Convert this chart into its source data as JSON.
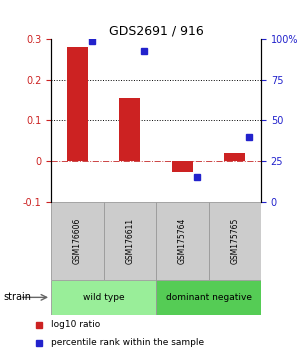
{
  "title": "GDS2691 / 916",
  "samples": [
    "GSM176606",
    "GSM176611",
    "GSM175764",
    "GSM175765"
  ],
  "log10_ratio": [
    0.28,
    0.155,
    -0.028,
    0.02
  ],
  "percentile_rank": [
    98.5,
    92.5,
    15.0,
    40.0
  ],
  "ylim_left": [
    -0.1,
    0.3
  ],
  "ylim_right": [
    0,
    100
  ],
  "hlines_dotted": [
    0.1,
    0.2
  ],
  "hline_dashed": 0.0,
  "bar_color": "#cc2222",
  "dot_color": "#2222cc",
  "groups": [
    {
      "label": "wild type",
      "indices": [
        0,
        1
      ],
      "color": "#99ee99"
    },
    {
      "label": "dominant negative",
      "indices": [
        2,
        3
      ],
      "color": "#55cc55"
    }
  ],
  "color_left": "#cc2222",
  "color_right": "#2222cc",
  "legend_items": [
    {
      "color": "#cc2222",
      "label": "log10 ratio"
    },
    {
      "color": "#2222cc",
      "label": "percentile rank within the sample"
    }
  ],
  "strain_label": "strain",
  "background_color": "#ffffff",
  "yticks_left": [
    -0.1,
    0.0,
    0.1,
    0.2,
    0.3
  ],
  "ytick_labels_left": [
    "-0.1",
    "0",
    "0.1",
    "0.2",
    "0.3"
  ],
  "yticks_right": [
    0,
    25,
    50,
    75,
    100
  ],
  "ytick_labels_right": [
    "0",
    "25",
    "50",
    "75",
    "100%"
  ],
  "sample_box_color": "#cccccc",
  "grid_color": "#888888"
}
